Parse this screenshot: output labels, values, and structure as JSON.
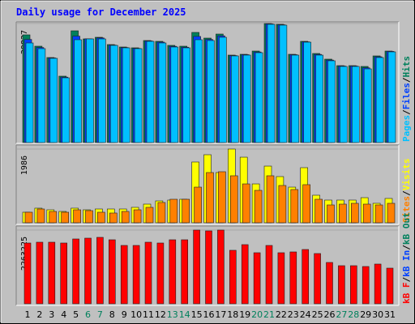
{
  "title": "Daily usage for December 2025",
  "chart_data": [
    {
      "type": "bar",
      "legend_separator": "/",
      "ylim": [
        0,
        39827
      ],
      "yticks": [
        39827
      ],
      "series": [
        {
          "name": "Hits",
          "color": "#00805c",
          "values": [
            36031,
            32238,
            28446,
            22215,
            37386,
            34677,
            35219,
            32781,
            31968,
            31697,
            34135,
            33864,
            32510,
            32238,
            36845,
            34948,
            36302,
            29259,
            29530,
            30614,
            39827,
            39554,
            29530,
            33864,
            29800,
            27904,
            25737,
            25737,
            25466,
            28989,
            30614
          ]
        },
        {
          "name": "Files",
          "color": "#0040ff",
          "values": [
            34500,
            31800,
            28300,
            21900,
            35600,
            34700,
            35000,
            32600,
            31800,
            31500,
            34000,
            33600,
            32200,
            31900,
            35500,
            34500,
            35700,
            29100,
            29400,
            30300,
            39700,
            39400,
            29400,
            33700,
            29500,
            27600,
            25600,
            25600,
            25000,
            28700,
            30500
          ]
        },
        {
          "name": "Pages",
          "color": "#00c0ff",
          "values": [
            33322,
            31426,
            28175,
            21673,
            34406,
            34677,
            34677,
            32510,
            31697,
            31426,
            33864,
            33322,
            31968,
            31697,
            34406,
            34135,
            35219,
            28988,
            29259,
            30071,
            39554,
            39283,
            29259,
            33593,
            29259,
            27362,
            25466,
            25466,
            24653,
            28446,
            30343
          ]
        }
      ]
    },
    {
      "type": "bar",
      "legend_separator": "/",
      "ylim": [
        0,
        1986
      ],
      "yticks": [
        1986
      ],
      "series": [
        {
          "name": "Visits",
          "color": "#ffff00",
          "values": [
            284,
            393,
            349,
            305,
            393,
            349,
            371,
            371,
            371,
            415,
            502,
            589,
            611,
            633,
            1637,
            1833,
            1353,
            1986,
            1767,
            1047,
            1527,
            1244,
            960,
            1484,
            742,
            611,
            611,
            611,
            676,
            524,
            655
          ]
        },
        {
          "name": "Sites",
          "color": "#ff8000",
          "values": [
            284,
            371,
            305,
            284,
            349,
            327,
            284,
            262,
            305,
            349,
            415,
            546,
            633,
            633,
            960,
            1353,
            1375,
            1266,
            1047,
            873,
            1266,
            1004,
            895,
            1026,
            633,
            480,
            502,
            524,
            502,
            480,
            524
          ]
        }
      ]
    },
    {
      "type": "bar",
      "legend_separator": "/",
      "ylim": [
        0,
        2263225
      ],
      "yticks": [
        2263225
      ],
      "categories": [
        "1",
        "2",
        "3",
        "4",
        "5",
        "6",
        "7",
        "8",
        "9",
        "10",
        "11",
        "12",
        "13",
        "14",
        "15",
        "16",
        "17",
        "18",
        "19",
        "20",
        "21",
        "22",
        "23",
        "24",
        "25",
        "26",
        "27",
        "28",
        "29",
        "30",
        "31"
      ],
      "category_colors": [
        "#000000",
        "#000000",
        "#000000",
        "#000000",
        "#000000",
        "#00805c",
        "#00805c",
        "#000000",
        "#000000",
        "#000000",
        "#000000",
        "#000000",
        "#00805c",
        "#00805c",
        "#000000",
        "#000000",
        "#000000",
        "#000000",
        "#000000",
        "#00805c",
        "#00805c",
        "#000000",
        "#000000",
        "#000000",
        "#000000",
        "#000000",
        "#00805c",
        "#00805c",
        "#000000",
        "#000000",
        "#000000"
      ],
      "series": [
        {
          "name": "kB F",
          "color": "#ff0000",
          "values": [
            1865325,
            1890196,
            1890196,
            1865325,
            1989680,
            2014551,
            2039422,
            1964809,
            1790712,
            1790712,
            1890196,
            1865325,
            1964809,
            1964809,
            2263225,
            2238354,
            2263225,
            1641486,
            1815583,
            1566873,
            1790712,
            1566873,
            1591744,
            1666357,
            1542002,
            1268421,
            1168937,
            1168937,
            1144066,
            1218679,
            1094324
          ]
        }
      ],
      "legend_extra": [
        {
          "name": "kB In",
          "color": "#0040ff"
        },
        {
          "name": "kB Out",
          "color": "#00805c"
        }
      ]
    }
  ]
}
